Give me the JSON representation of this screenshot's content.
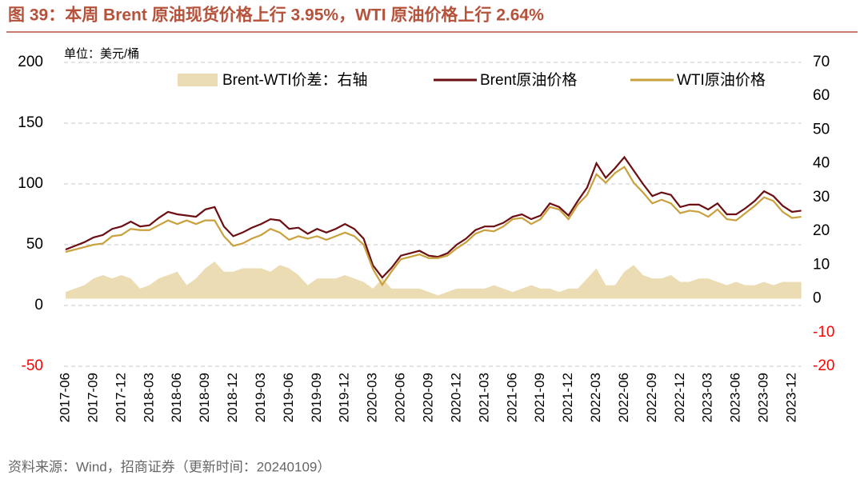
{
  "chart_data": {
    "type": "line",
    "title": "图 39：本周 Brent 原油现货价格上行 3.95%，WTI 原油价格上行 2.64%",
    "unit_label": "单位：美元/桶",
    "source": "资料来源：Wind，招商证券（更新时间：20240109）",
    "categories": [
      "2017-06",
      null,
      null,
      "2017-09",
      null,
      null,
      "2017-12",
      null,
      null,
      "2018-03",
      null,
      null,
      "2018-06",
      null,
      null,
      "2018-09",
      null,
      null,
      "2018-12",
      null,
      null,
      "2019-03",
      null,
      null,
      "2019-06",
      null,
      null,
      "2019-09",
      null,
      null,
      "2019-12",
      null,
      null,
      "2020-03",
      null,
      null,
      "2020-06",
      null,
      null,
      "2020-09",
      null,
      null,
      "2020-12",
      null,
      null,
      "2021-03",
      null,
      null,
      "2021-06",
      null,
      null,
      "2021-09",
      null,
      null,
      "2021-12",
      null,
      null,
      "2022-03",
      null,
      null,
      "2022-06",
      null,
      null,
      "2022-09",
      null,
      null,
      "2022-12",
      null,
      null,
      "2023-03",
      null,
      null,
      "2023-06",
      null,
      null,
      "2023-09",
      null,
      null,
      "2023-12",
      null
    ],
    "series": [
      {
        "name": "Brent-WTI价差：右轴",
        "kind": "area",
        "axis": "y2",
        "color": "#ecdcb4",
        "values": [
          2,
          3,
          4,
          6,
          7,
          6,
          7,
          6,
          3,
          4,
          6,
          7,
          8,
          4,
          6,
          9,
          11,
          8,
          8,
          9,
          9,
          9,
          8,
          10,
          9,
          7,
          4,
          6,
          6,
          6,
          7,
          6,
          5,
          3,
          6,
          3,
          3,
          3,
          3,
          2,
          1,
          2,
          3,
          3,
          3,
          3,
          4,
          3,
          2,
          3,
          4,
          3,
          3,
          2,
          3,
          3,
          6,
          9,
          4,
          4,
          8,
          10,
          7,
          6,
          6,
          7,
          5,
          5,
          6,
          6,
          5,
          4,
          5,
          4,
          4,
          5,
          4,
          5,
          5,
          5
        ]
      },
      {
        "name": "Brent原油价格",
        "kind": "line",
        "color": "#6b0f12",
        "values": [
          46,
          49,
          52,
          56,
          58,
          63,
          65,
          69,
          65,
          66,
          72,
          77,
          75,
          74,
          73,
          79,
          81,
          65,
          57,
          60,
          64,
          67,
          71,
          70,
          63,
          64,
          59,
          63,
          60,
          63,
          67,
          63,
          55,
          33,
          23,
          31,
          41,
          43,
          45,
          41,
          40,
          43,
          50,
          55,
          62,
          65,
          65,
          68,
          73,
          75,
          71,
          74,
          84,
          81,
          74,
          86,
          97,
          117,
          105,
          113,
          122,
          111,
          100,
          90,
          93,
          91,
          81,
          83,
          83,
          79,
          84,
          75,
          75,
          80,
          86,
          94,
          90,
          82,
          77,
          78
        ]
      },
      {
        "name": "WTI原油价格",
        "kind": "line",
        "color": "#c9a13c",
        "values": [
          44,
          46,
          48,
          50,
          51,
          57,
          58,
          63,
          62,
          62,
          66,
          70,
          67,
          70,
          67,
          70,
          70,
          57,
          49,
          51,
          55,
          58,
          63,
          60,
          54,
          57,
          55,
          57,
          54,
          57,
          60,
          57,
          50,
          30,
          17,
          28,
          38,
          40,
          42,
          39,
          39,
          41,
          47,
          52,
          59,
          62,
          61,
          65,
          71,
          72,
          67,
          71,
          81,
          79,
          71,
          83,
          91,
          108,
          101,
          109,
          114,
          101,
          93,
          84,
          87,
          84,
          76,
          78,
          77,
          73,
          79,
          71,
          70,
          76,
          82,
          89,
          86,
          77,
          72,
          73
        ]
      }
    ],
    "ylim": [
      -50,
      200
    ],
    "yticks": [
      -50,
      0,
      50,
      100,
      150,
      200
    ],
    "y2lim": [
      -20,
      70
    ],
    "y2ticks": [
      -20,
      -10,
      0,
      10,
      20,
      30,
      40,
      50,
      60,
      70
    ],
    "grid": true,
    "legend": "top",
    "negative_tick_color": "#ff0000",
    "title_color": "#b5523b"
  }
}
